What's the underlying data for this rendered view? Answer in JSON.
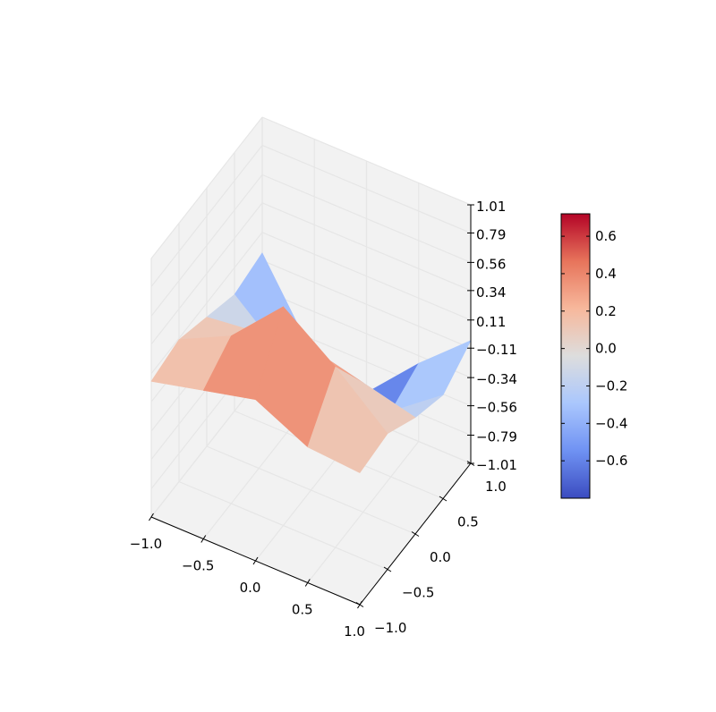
{
  "chart_data": {
    "type": "surface3d",
    "title": "",
    "xlabel": "",
    "ylabel": "",
    "zlabel": "",
    "colormap": "coolwarm",
    "colormap_stops": [
      "#3b4cc0",
      "#6f92f3",
      "#aac7fd",
      "#dddddd",
      "#f7b89c",
      "#e7745b",
      "#b40426"
    ],
    "grid": true,
    "pane_color": "#f2f2f2",
    "xlim": [
      -1.0,
      1.0
    ],
    "ylim": [
      -1.0,
      1.0
    ],
    "zlim": [
      -1.01,
      1.01
    ],
    "x": [
      -1.0,
      -0.5,
      0.0,
      0.5,
      1.0
    ],
    "y": [
      -1.0,
      -0.5,
      0.0,
      0.5,
      1.0
    ],
    "z": [
      [
        0.05,
        0.15,
        0.25,
        0.05,
        0.02
      ],
      [
        0.1,
        0.3,
        0.7,
        0.4,
        0.05
      ],
      [
        0.0,
        0.05,
        0.1,
        0.0,
        -0.1
      ],
      [
        -0.1,
        -0.45,
        -0.65,
        -0.5,
        -0.2
      ],
      [
        -0.05,
        -0.7,
        -0.8,
        -0.4,
        -0.05
      ]
    ],
    "x_ticks": [
      "−1.0",
      "−0.5",
      "0.0",
      "0.5",
      "1.0"
    ],
    "y_ticks": [
      "−1.0",
      "−0.5",
      "0.0",
      "0.5",
      "1.0"
    ],
    "z_ticks": [
      "−1.01",
      "−0.79",
      "−0.56",
      "−0.34",
      "−0.11",
      "0.11",
      "0.34",
      "0.56",
      "0.79",
      "1.01"
    ],
    "colorbar": {
      "range": [
        -0.8,
        0.72
      ],
      "ticks": [
        "−0.6",
        "−0.4",
        "−0.2",
        "0.0",
        "0.2",
        "0.4",
        "0.6"
      ],
      "tick_values": [
        -0.6,
        -0.4,
        -0.2,
        0.0,
        0.2,
        0.4,
        0.6
      ]
    }
  }
}
